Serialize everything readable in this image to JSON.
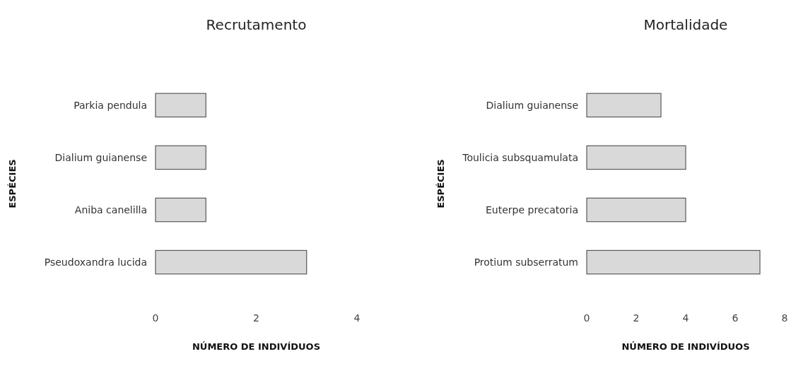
{
  "chart_data": [
    {
      "type": "bar",
      "orientation": "horizontal",
      "title": "Recrutamento",
      "xlabel": "NÚMERO DE INDIVÍDUOS",
      "ylabel": "ESPÉCIES",
      "categories": [
        "Parkia pendula",
        "Dialium guianense",
        "Aniba canelilla",
        "Pseudoxandra lucida"
      ],
      "values": [
        1,
        1,
        1,
        3
      ],
      "color": "#d9d9d9",
      "xlim": [
        0,
        4
      ],
      "xticks": [
        0,
        2,
        4
      ]
    },
    {
      "type": "bar",
      "orientation": "horizontal",
      "title": "Mortalidade",
      "xlabel": "NÚMERO DE INDIVÍDUOS",
      "ylabel": "ESPÉCIES",
      "categories": [
        "Dialium guianense",
        "Toulicia subsquamulata",
        "Euterpe precatoria",
        "Protium subserratum"
      ],
      "values": [
        3,
        4,
        4,
        7
      ],
      "color": "#d9d9d9",
      "xlim": [
        0,
        8
      ],
      "xticks": [
        0,
        2,
        4,
        6,
        8
      ]
    }
  ]
}
